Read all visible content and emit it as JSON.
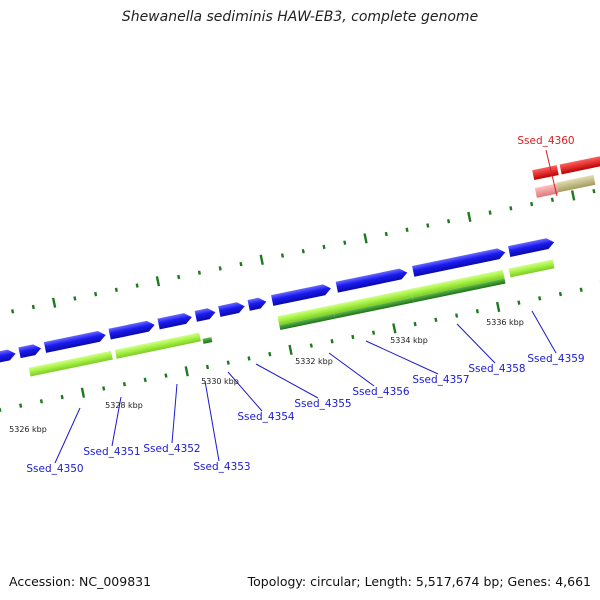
{
  "title": "Shewanella sediminis HAW-EB3, complete genome",
  "footer": {
    "accession": "Accession: NC_009831",
    "summary": "Topology: circular; Length: 5,517,674 bp; Genes: 4,661"
  },
  "colors": {
    "cds_forward": "#1010e0",
    "rna_feature": "#a4f040",
    "rna_feature_dark": "#2f8f22",
    "highlight_gene": "#ee1111",
    "highlight_gene_light": "#f29a9a",
    "olive_feature": "#c4be88",
    "backbone": "#8a8a8a",
    "tick": "#1f7a1f",
    "label_blue": "#1a1ad0",
    "label_red": "#d42020"
  },
  "scale_labels": [
    {
      "text": "5326 kbp"
    },
    {
      "text": "5328 kbp"
    },
    {
      "text": "5330 kbp"
    },
    {
      "text": "5332 kbp"
    },
    {
      "text": "5334 kbp"
    },
    {
      "text": "5336 kbp"
    }
  ],
  "gene_labels": [
    {
      "text": "Ssed_4350",
      "highlight": false
    },
    {
      "text": "Ssed_4351",
      "highlight": false
    },
    {
      "text": "Ssed_4352",
      "highlight": false
    },
    {
      "text": "Ssed_4353",
      "highlight": false
    },
    {
      "text": "Ssed_4354",
      "highlight": false
    },
    {
      "text": "Ssed_4355",
      "highlight": false
    },
    {
      "text": "Ssed_4356",
      "highlight": false
    },
    {
      "text": "Ssed_4357",
      "highlight": false
    },
    {
      "text": "Ssed_4358",
      "highlight": false
    },
    {
      "text": "Ssed_4359",
      "highlight": false
    },
    {
      "text": "Ssed_4360",
      "highlight": true
    }
  ]
}
